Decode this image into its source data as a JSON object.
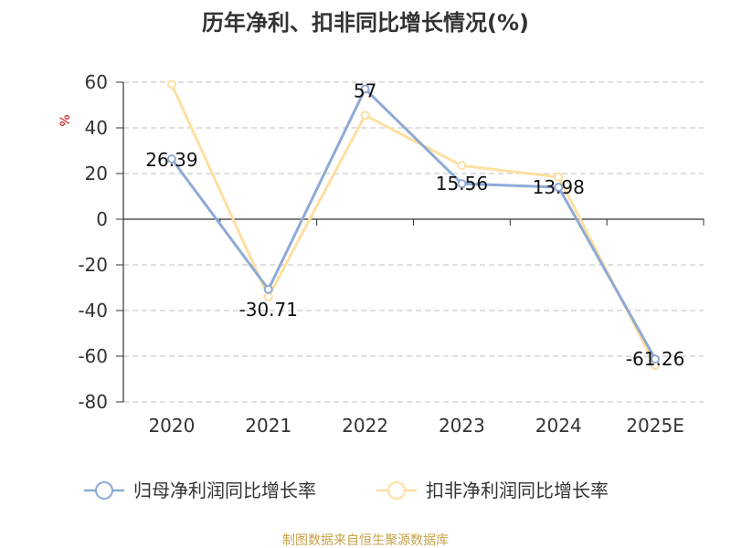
{
  "chart_data": {
    "type": "line",
    "title": "历年净利、扣非同比增长情况(%)",
    "ylabel": "%",
    "categories": [
      "2020",
      "2021",
      "2022",
      "2023",
      "2024",
      "2025E"
    ],
    "ylim": [
      -80,
      60
    ],
    "yticks": [
      60,
      40,
      20,
      0,
      -20,
      -40,
      -60,
      -80
    ],
    "grid": true,
    "legend_position": "bottom",
    "series": [
      {
        "name": "归母净利润同比增长率",
        "values": [
          26.39,
          -30.71,
          57,
          15.56,
          13.98,
          -61.26
        ],
        "labels": [
          "26.39",
          "-30.71",
          "57",
          "15.56",
          "13.98",
          "-61.26"
        ],
        "color": "#8eaad6"
      },
      {
        "name": "扣非净利润同比增长率",
        "values": [
          59,
          -34,
          45.5,
          23.5,
          18.5,
          -64
        ],
        "color": "#fddfa0"
      }
    ]
  },
  "source_text": "制图数据来自恒生聚源数据库",
  "colors": {
    "axis": "#333333",
    "grid": "#cccccc",
    "unit": "#cc0000",
    "source": "#c7a34a"
  }
}
